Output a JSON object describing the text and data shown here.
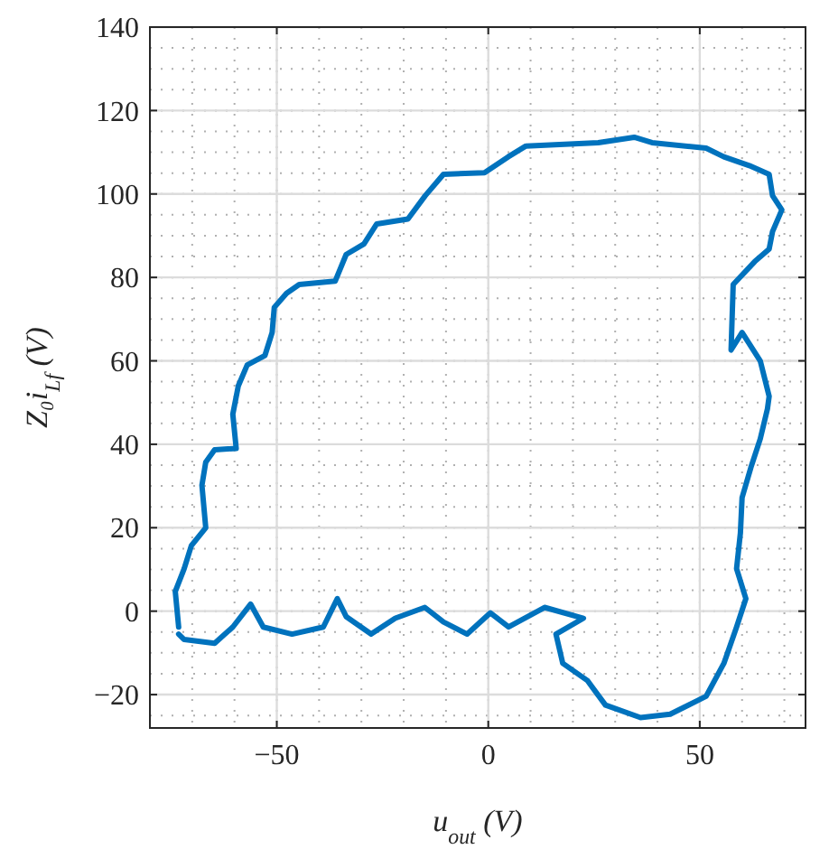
{
  "chart_data": {
    "type": "line",
    "xlabel": "u$_{out}$ (V)",
    "ylabel": "Z₀i$_{Lf}$ (V)",
    "xlim": [
      -80,
      75
    ],
    "ylim": [
      -28,
      140
    ],
    "xticks": [
      -50,
      0,
      50
    ],
    "yticks": [
      -20,
      0,
      20,
      40,
      60,
      80,
      100,
      120,
      140
    ],
    "grid": true,
    "marker": "none",
    "line_style": "solid",
    "series": [
      {
        "color": "#0072bd",
        "x": [
          -73.2,
          -71.9,
          -64.7,
          -60.4,
          -56.2,
          -53.2,
          -46.4,
          -39,
          -35.7,
          -33.6,
          -27.7,
          -22,
          -15,
          -10.6,
          -5,
          0.5,
          4.8,
          13.3,
          22.5,
          16,
          17.6,
          23.4,
          27.7,
          36,
          43,
          51.5,
          55.7,
          58.7,
          60.9,
          58.7,
          59.6,
          60,
          62.1,
          64.3,
          66,
          66.4,
          64.3,
          60,
          57.4,
          57.9,
          63,
          66.4,
          67.2,
          69.4,
          67.2,
          66.4,
          61.7,
          55.7,
          51.5,
          38.7,
          34.5,
          26,
          8.9,
          4.7,
          -0.9,
          -10.6,
          -14.9,
          -19,
          -26.4,
          -29.4,
          -33.6,
          -36.2,
          -44.7,
          -47.7,
          -50.6,
          -51.1,
          -52.8,
          -57,
          -59.1,
          -60.4,
          -59.6,
          -64.7,
          -66.8,
          -67.7,
          -66.8,
          -70.2,
          -71.9,
          -74,
          -73.2
        ],
        "values": [
          -5.5,
          -6.8,
          -7.7,
          -3.8,
          1.7,
          -3.8,
          -5.5,
          -3.8,
          3,
          -1.3,
          -5.5,
          -1.7,
          0.9,
          -2.6,
          -5.5,
          -0.4,
          -3.8,
          0.9,
          -1.7,
          -5.5,
          -12.5,
          -16.6,
          -22.5,
          -25.5,
          -24.7,
          -20.4,
          -12.5,
          -3.8,
          3,
          10.2,
          18.7,
          27.2,
          34.5,
          41.3,
          48.5,
          51.5,
          60,
          66.8,
          62.6,
          78.3,
          83.8,
          86.8,
          91,
          96.2,
          99.6,
          104.7,
          106.8,
          108.9,
          111,
          112.3,
          113.6,
          112.3,
          111.5,
          108.9,
          105.1,
          104.7,
          99.6,
          94,
          92.8,
          88,
          85.5,
          79.1,
          78.3,
          76.2,
          72.8,
          66.8,
          61.3,
          59,
          54,
          47.2,
          39,
          38.7,
          35.7,
          30.2,
          20,
          15.7,
          10.2,
          4.7,
          -3.8
        ]
      }
    ]
  }
}
